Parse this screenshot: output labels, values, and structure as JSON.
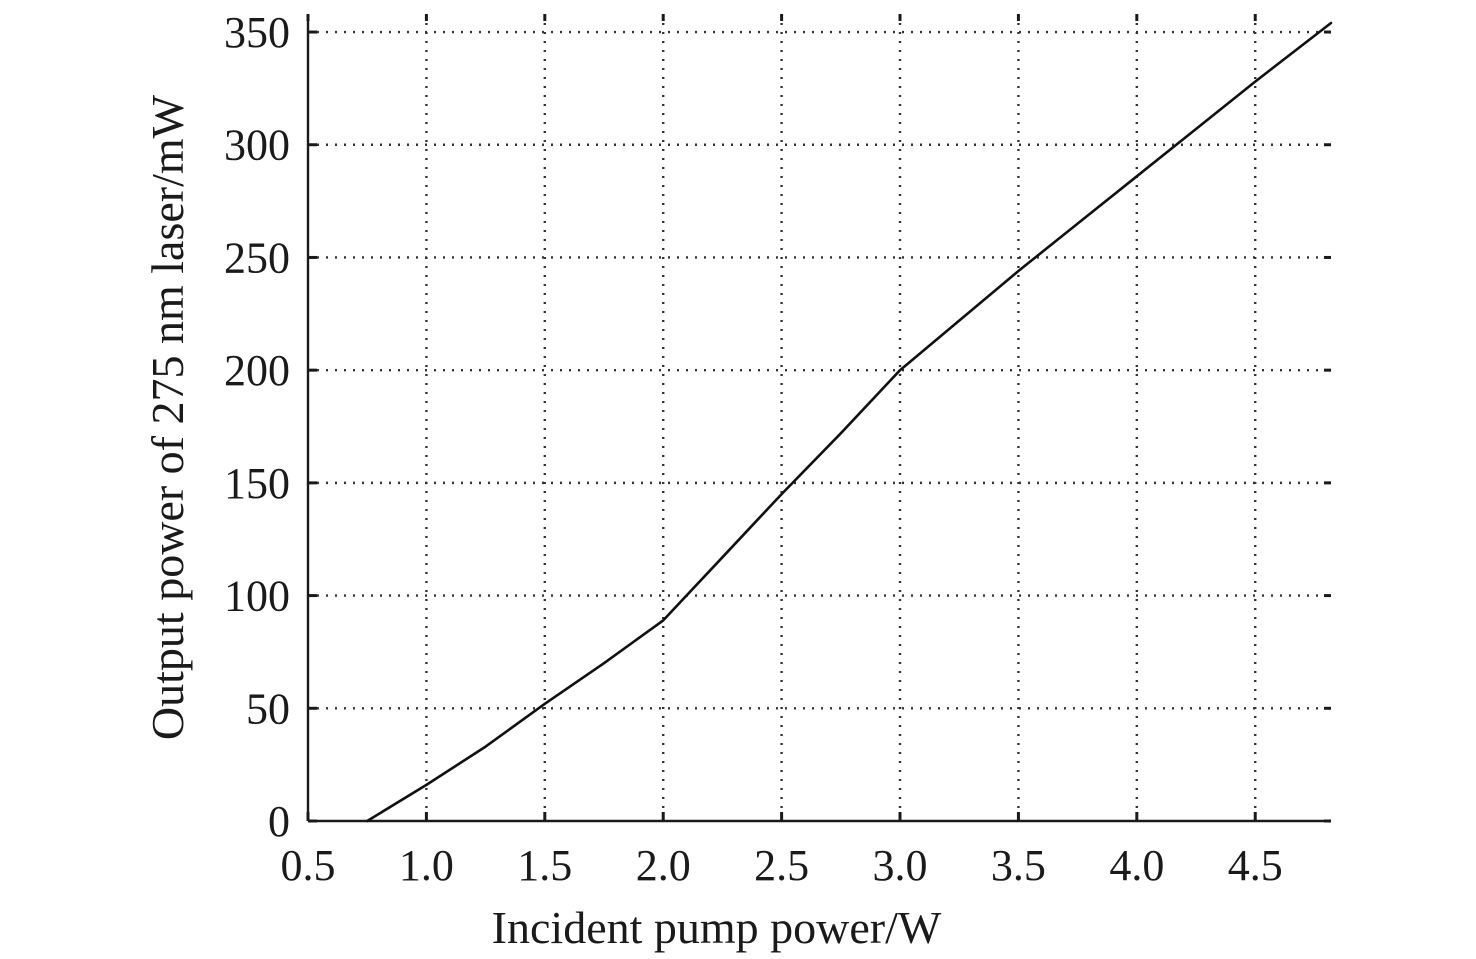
{
  "chart_data": {
    "type": "line",
    "xlabel": "Incident pump power/W",
    "ylabel": "Output power of 275 nm laser/mW",
    "xlim": [
      0.5,
      4.82
    ],
    "ylim": [
      0,
      358
    ],
    "xticks": [
      0.5,
      1.0,
      1.5,
      2.0,
      2.5,
      3.0,
      3.5,
      4.0,
      4.5
    ],
    "xtick_labels": [
      "0.5",
      "1.0",
      "1.5",
      "2.0",
      "2.5",
      "3.0",
      "3.5",
      "4.0",
      "4.5"
    ],
    "yticks": [
      0,
      50,
      100,
      150,
      200,
      250,
      300,
      350
    ],
    "ytick_labels": [
      "0",
      "50",
      "100",
      "150",
      "200",
      "250",
      "300",
      "350"
    ],
    "grid": true,
    "series": [
      {
        "x": [
          0.75,
          1.0,
          1.25,
          1.5,
          1.75,
          2.0,
          2.25,
          2.5,
          2.75,
          3.0,
          3.25,
          3.5,
          3.75,
          4.0,
          4.25,
          4.5,
          4.82
        ],
        "y": [
          0,
          16,
          33,
          52,
          70,
          89,
          117,
          145,
          172,
          200,
          222,
          244,
          265,
          286,
          307,
          328,
          354
        ]
      }
    ]
  }
}
